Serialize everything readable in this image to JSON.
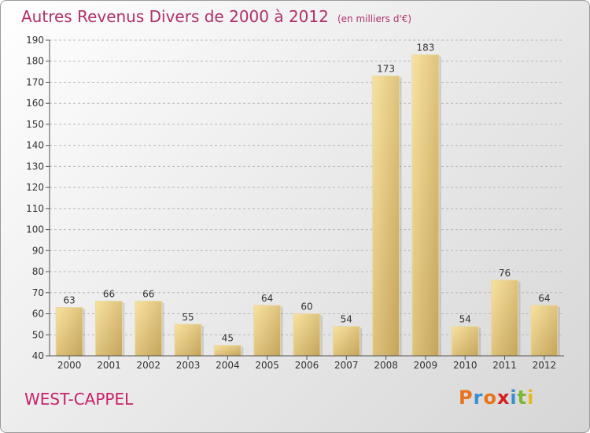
{
  "header": {
    "title": "Autres Revenus Divers de 2000 à 2012",
    "subtitle": "(en milliers d'€)"
  },
  "footer": {
    "commune": "WEST-CAPPEL",
    "logo_text": "Proxiti"
  },
  "colors": {
    "title": "#b0306a",
    "bar_light": "#f6dd98",
    "bar_dark": "#c9ab62",
    "grid": "#b8b8b8",
    "logo": [
      "#e8731a",
      "#3a8fd0",
      "#e8731a",
      "#d62020",
      "#3a8fd0",
      "#7cb82f",
      "#e8b81a"
    ]
  },
  "chart_data": {
    "type": "bar",
    "title": "Autres Revenus Divers de 2000 à 2012",
    "subtitle": "(en milliers d'€)",
    "categories": [
      "2000",
      "2001",
      "2002",
      "2003",
      "2004",
      "2005",
      "2006",
      "2007",
      "2008",
      "2009",
      "2010",
      "2011",
      "2012"
    ],
    "values": [
      63,
      66,
      66,
      55,
      45,
      64,
      60,
      54,
      173,
      183,
      54,
      76,
      64
    ],
    "ylim": [
      40,
      190
    ],
    "yticks": [
      40,
      50,
      60,
      70,
      80,
      90,
      100,
      110,
      120,
      130,
      140,
      150,
      160,
      170,
      180,
      190
    ],
    "grid": true
  }
}
